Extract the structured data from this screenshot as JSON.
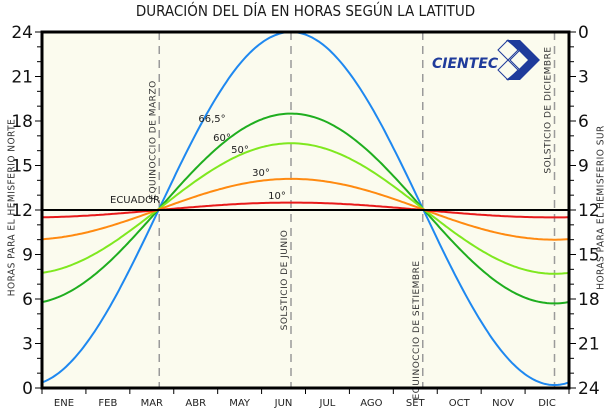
{
  "title": "DURACIÓN DEL DÍA EN HORAS SEGÚN LA LATITUD",
  "logo": {
    "text": "CIENTEC",
    "color": "#1f3b9b"
  },
  "colors": {
    "background": "#fbfbee",
    "axis": "#000000",
    "equator": "#000000",
    "guide": "#9a9a9a"
  },
  "chart_data": {
    "type": "line",
    "title": "DURACIÓN DEL DÍA EN HORAS SEGÚN LA LATITUD",
    "xlabel": "",
    "ylabel": "HORAS PARA EL HEMISFERIO NORTE",
    "ylabel_right": "HORAS PARA EL HEMISFERIO SUR",
    "categories": [
      "ENE",
      "FEB",
      "MAR",
      "ABR",
      "MAY",
      "JUN",
      "JUL",
      "AGO",
      "SET",
      "OCT",
      "NOV",
      "DIC"
    ],
    "ylim": [
      0,
      24
    ],
    "yticks_left": [
      0,
      3,
      6,
      9,
      12,
      15,
      18,
      21,
      24
    ],
    "yticks_right": [
      24,
      21,
      18,
      15,
      12,
      9,
      6,
      3,
      0
    ],
    "grid": false,
    "legend_position": "inline labels",
    "series": [
      {
        "name": "66,5°",
        "color": "#1e88f0",
        "min": 0.2,
        "max": 24.0,
        "x_label": 212,
        "y_label": 122
      },
      {
        "name": "60°",
        "color": "#1fae1f",
        "min": 5.7,
        "max": 18.5,
        "x_label": 222,
        "y_label": 141
      },
      {
        "name": "50°",
        "color": "#7fe81f",
        "min": 7.7,
        "max": 16.5,
        "x_label": 240,
        "y_label": 153
      },
      {
        "name": "30°",
        "color": "#ff8a10",
        "min": 10.0,
        "max": 14.1,
        "x_label": 261,
        "y_label": 176
      },
      {
        "name": "10°",
        "color": "#e81a1a",
        "min": 11.5,
        "max": 12.5,
        "x_label": 277,
        "y_label": 199
      },
      {
        "name": "ECUADOR",
        "color": "#000000",
        "min": 12.0,
        "max": 12.0,
        "x_label": 135,
        "y_label": 203
      }
    ],
    "annotations": [
      {
        "text": "EQUINOCCIO DE MARZO",
        "month_pos": 2.67
      },
      {
        "text": "SOLSTICIO DE JUNIO",
        "month_pos": 5.67
      },
      {
        "text": "EQUINOCCIO DE SETIEMBRE",
        "month_pos": 8.67
      },
      {
        "text": "SOLSTICIO DE DICIEMBRE",
        "month_pos": 11.67
      }
    ]
  }
}
